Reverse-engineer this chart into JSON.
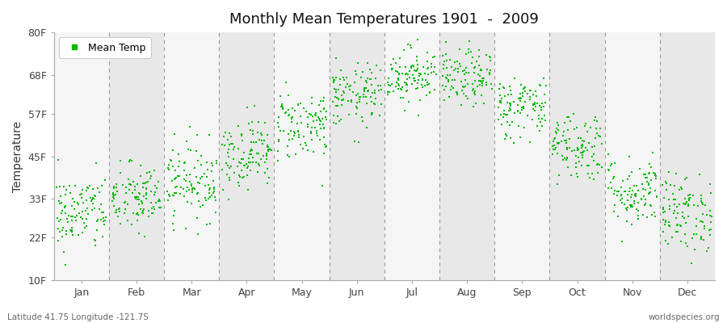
{
  "title": "Monthly Mean Temperatures 1901  -  2009",
  "ylabel": "Temperature",
  "bottom_left": "Latitude 41.75 Longitude -121.75",
  "bottom_right": "worldspecies.org",
  "legend_label": "Mean Temp",
  "dot_color": "#00bb00",
  "bg_color": "#eeeeee",
  "band_light": "#f5f5f5",
  "band_dark": "#e8e8e8",
  "ytick_labels": [
    "10F",
    "22F",
    "33F",
    "45F",
    "57F",
    "68F",
    "80F"
  ],
  "ytick_values": [
    10,
    22,
    33,
    45,
    57,
    68,
    80
  ],
  "ylim": [
    10,
    80
  ],
  "months": [
    "Jan",
    "Feb",
    "Mar",
    "Apr",
    "May",
    "Jun",
    "Jul",
    "Aug",
    "Sep",
    "Oct",
    "Nov",
    "Dec"
  ],
  "monthly_means": [
    29,
    33,
    38,
    46,
    54,
    62,
    68,
    67,
    59,
    48,
    35,
    29
  ],
  "monthly_stds": [
    5.5,
    5.0,
    5.5,
    5.0,
    5.0,
    4.5,
    4.0,
    4.0,
    4.5,
    5.0,
    5.0,
    5.5
  ],
  "n_years": 109,
  "random_seed": 42,
  "dot_size": 3,
  "dot_marker": "s"
}
